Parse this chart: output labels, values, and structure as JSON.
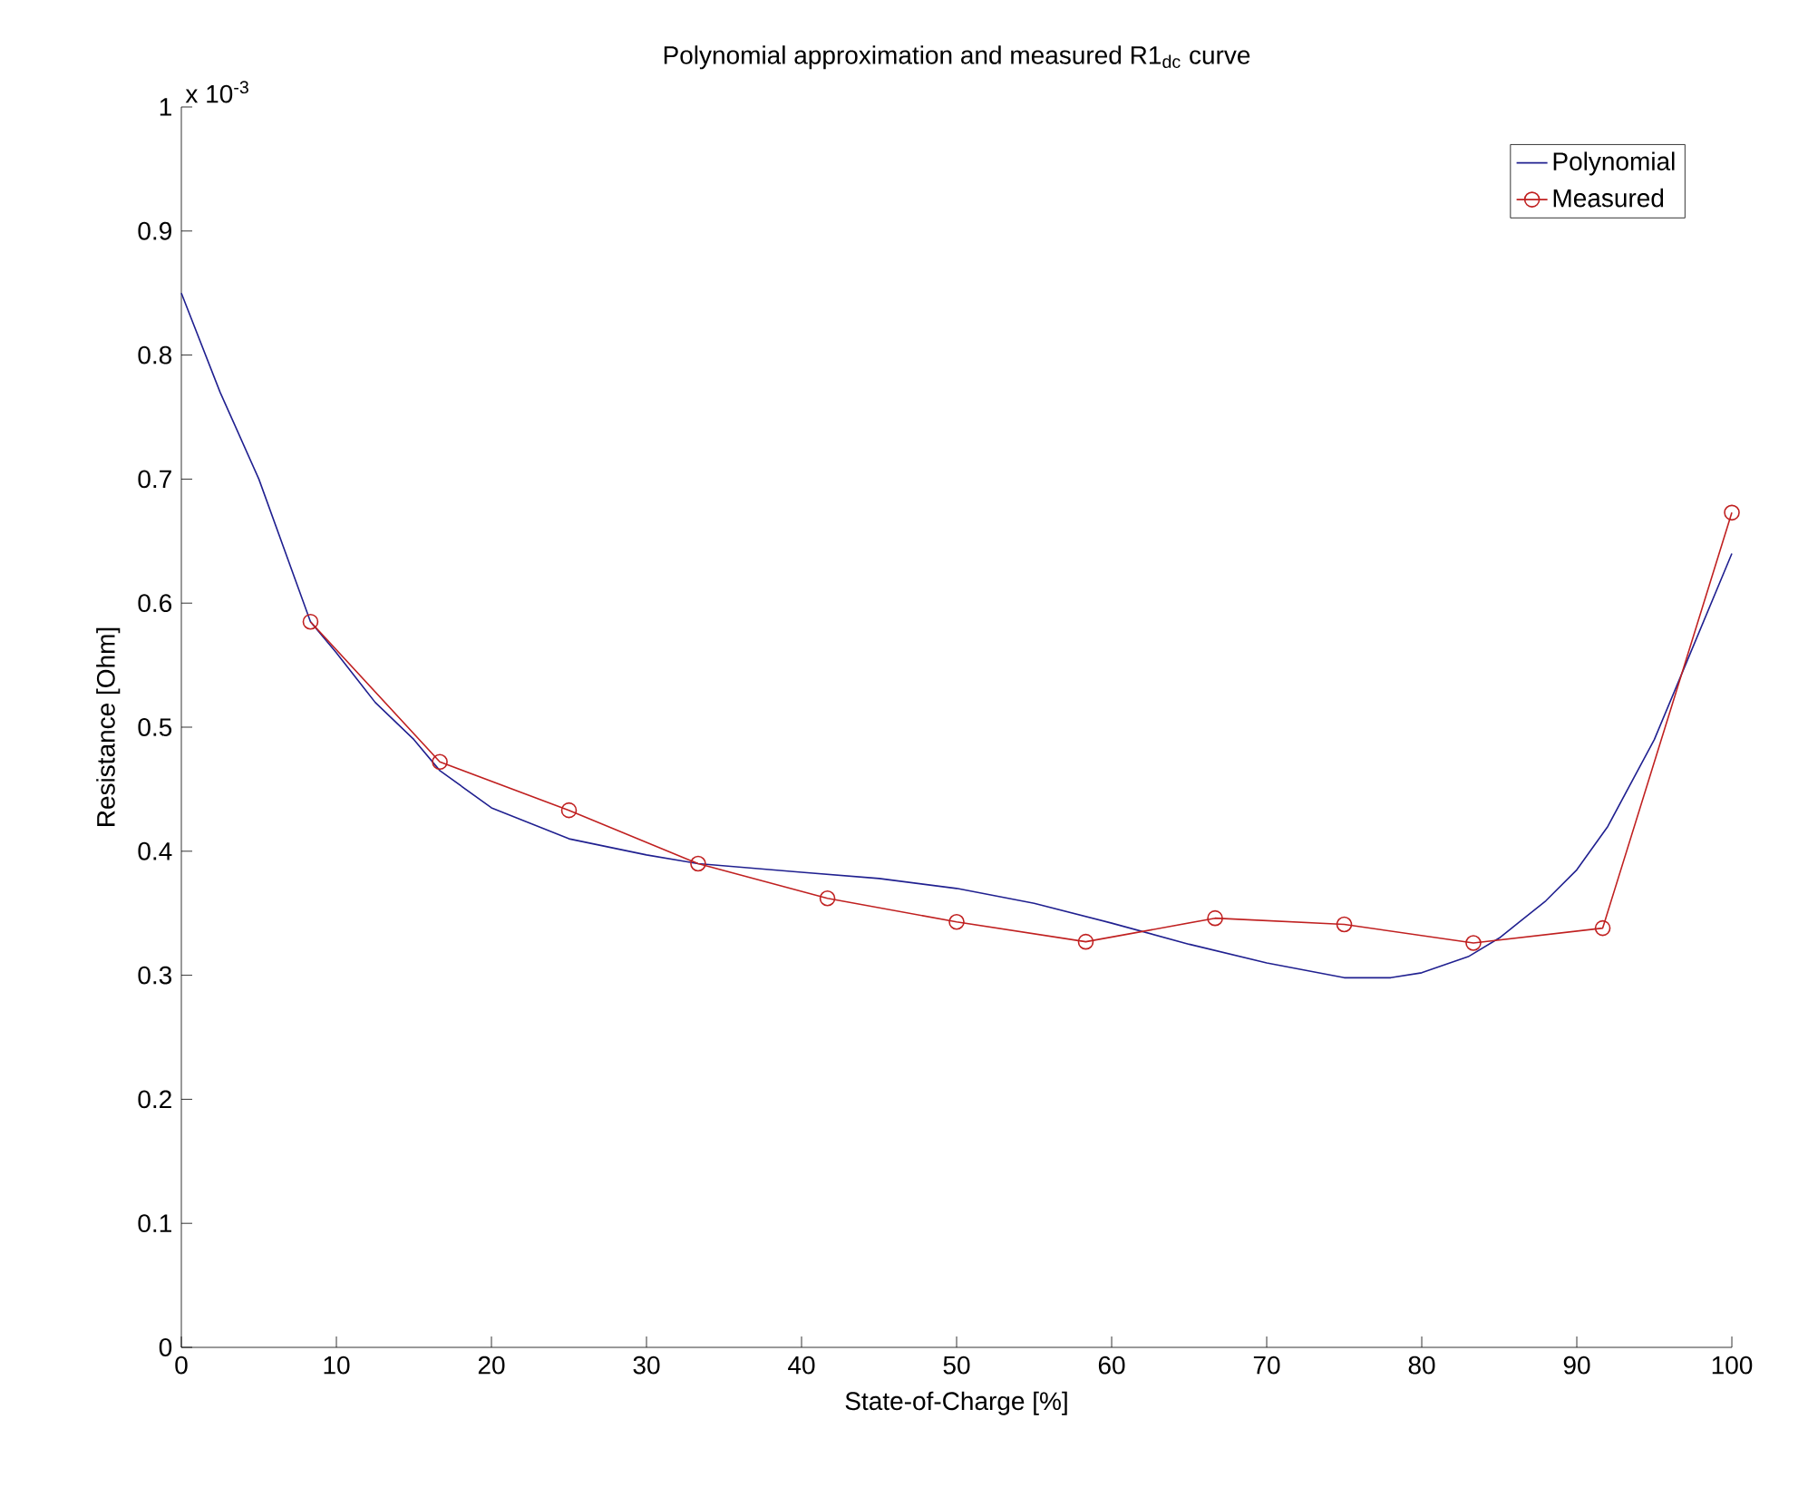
{
  "chart_data": {
    "type": "line",
    "title": "Polynomial approximation and measured R1$_{dc}$ curve",
    "xlabel": "State-of-Charge [%]",
    "ylabel": "Resistance [Ohm]",
    "annotations": [
      "x 10$^{-3}$"
    ],
    "xlim": [
      0,
      100
    ],
    "xticks": [
      0,
      10,
      20,
      30,
      40,
      50,
      60,
      70,
      80,
      90,
      100
    ],
    "ylim": [
      0,
      1
    ],
    "yticks": [
      0,
      0.1,
      0.2,
      0.3,
      0.4,
      0.5,
      0.6,
      0.7,
      0.8,
      0.9,
      1
    ],
    "legend": "top right",
    "series": [
      {
        "name": "Polynomial",
        "color": "#202090",
        "marker": "none",
        "x": [
          0,
          2.5,
          5,
          8.33,
          10,
          12.5,
          15,
          16.67,
          20,
          25,
          30,
          33.33,
          40,
          45,
          50,
          55,
          60,
          65,
          70,
          75,
          78,
          80,
          83,
          85,
          88,
          90,
          92,
          95,
          97,
          100
        ],
        "values": [
          0.85,
          0.77,
          0.7,
          0.585,
          0.56,
          0.52,
          0.49,
          0.465,
          0.435,
          0.41,
          0.397,
          0.39,
          0.383,
          0.378,
          0.37,
          0.358,
          0.342,
          0.325,
          0.31,
          0.298,
          0.298,
          0.302,
          0.315,
          0.33,
          0.36,
          0.385,
          0.42,
          0.49,
          0.55,
          0.64
        ]
      },
      {
        "name": "Measured",
        "color": "#c02020",
        "marker": "circle",
        "x": [
          8.33,
          16.67,
          25,
          33.33,
          41.67,
          50,
          58.33,
          66.67,
          75,
          83.33,
          91.67,
          100
        ],
        "values": [
          0.585,
          0.472,
          0.433,
          0.39,
          0.362,
          0.343,
          0.327,
          0.346,
          0.341,
          0.326,
          0.338,
          0.673
        ]
      }
    ]
  }
}
